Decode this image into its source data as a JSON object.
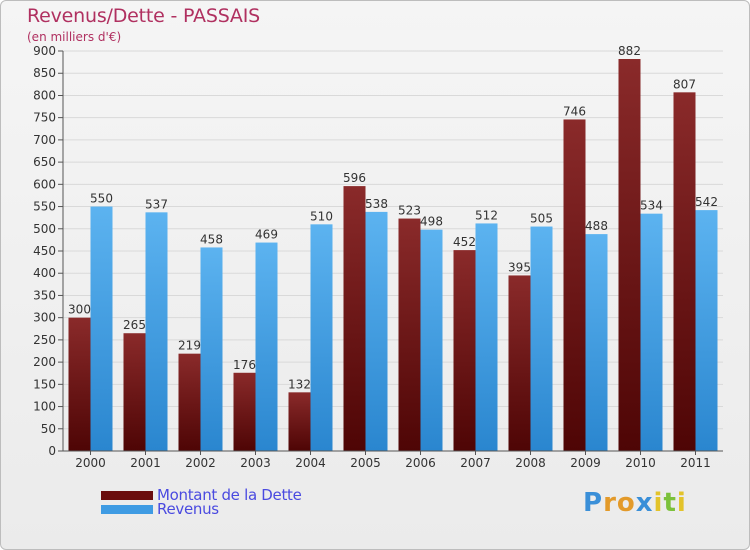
{
  "header": {
    "title": "Revenus/Dette - PASSAIS",
    "subtitle": "(en milliers d'€)"
  },
  "chart_data": {
    "type": "bar",
    "title": "Revenus/Dette - PASSAIS",
    "ylabel": "(en milliers d'€)",
    "xlabel": "",
    "ylim": [
      0,
      900
    ],
    "ytick_step": 50,
    "grid": true,
    "legend_position": "bottom-left",
    "categories": [
      "2000",
      "2001",
      "2002",
      "2003",
      "2004",
      "2005",
      "2006",
      "2007",
      "2008",
      "2009",
      "2010",
      "2011"
    ],
    "series": [
      {
        "name": "Montant de la Dette",
        "color": "#7a1a1a",
        "values": [
          300,
          265,
          219,
          176,
          132,
          596,
          523,
          452,
          395,
          746,
          882,
          807
        ]
      },
      {
        "name": "Revenus",
        "color": "#3f9be3",
        "values": [
          550,
          537,
          458,
          469,
          510,
          538,
          498,
          512,
          505,
          488,
          534,
          542
        ]
      }
    ]
  },
  "legend": {
    "items": [
      {
        "label": "Montant de la Dette",
        "color": "#6b0d0d"
      },
      {
        "label": "Revenus",
        "color": "#3f9be3"
      }
    ]
  },
  "logo": {
    "letters": [
      "P",
      "r",
      "o",
      "x",
      "i",
      "t",
      "i"
    ],
    "colors": [
      "#3a8fd8",
      "#e39a2a",
      "#e39a2a",
      "#3a8fd8",
      "#e3c32a",
      "#7cc13b",
      "#e3c32a"
    ]
  }
}
